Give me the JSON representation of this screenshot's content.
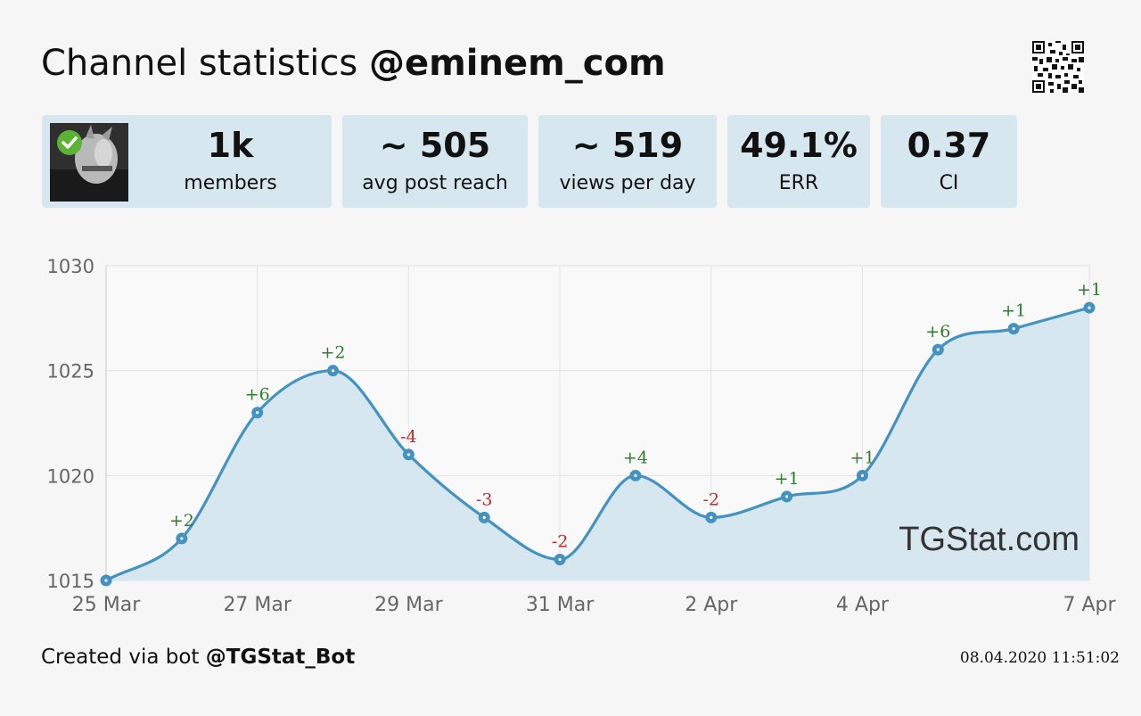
{
  "header": {
    "title": "Channel statistics",
    "channel": "@eminem_com"
  },
  "stats": [
    {
      "value": "1k",
      "label": "members"
    },
    {
      "value": "~ 505",
      "label": "avg post reach"
    },
    {
      "value": "~ 519",
      "label": "views per day"
    },
    {
      "value": "49.1%",
      "label": "ERR"
    },
    {
      "value": "0.37",
      "label": "CI"
    }
  ],
  "footer": {
    "prefix": "Created via bot",
    "bot": "@TGStat_Bot",
    "timestamp": "08.04.2020 11:51:02"
  },
  "colors": {
    "line": "#4392c0",
    "fill": "#d7e7f0",
    "card": "#d7e7f0",
    "positive": "#2e7d32",
    "negative": "#c62828",
    "grid": "#e2e4e2"
  },
  "icons": {
    "verified": "verified-check-icon",
    "qr": "qr-code-icon"
  },
  "chart_data": {
    "type": "area",
    "x": [
      "25 Mar",
      "26 Mar",
      "27 Mar",
      "28 Mar",
      "29 Mar",
      "30 Mar",
      "31 Mar",
      "1 Apr",
      "2 Apr",
      "3 Apr",
      "4 Apr",
      "5 Apr",
      "6 Apr",
      "7 Apr"
    ],
    "values": [
      1015,
      1017,
      1023,
      1025,
      1021,
      1018,
      1016,
      1020,
      1018,
      1019,
      1020,
      1026,
      1027,
      1028
    ],
    "labels": [
      "",
      "+2",
      "+6",
      "+2",
      "-4",
      "-3",
      "-2",
      "+4",
      "-2",
      "+1",
      "+1",
      "+6",
      "+1",
      "+1"
    ],
    "xticks": [
      "25 Mar",
      "27 Mar",
      "29 Mar",
      "31 Mar",
      "2 Apr",
      "4 Apr",
      "7 Apr"
    ],
    "yticks": [
      1015,
      1020,
      1025,
      1030
    ],
    "ylim": [
      1015,
      1030
    ],
    "grid": true,
    "watermark": "TGStat.com"
  }
}
